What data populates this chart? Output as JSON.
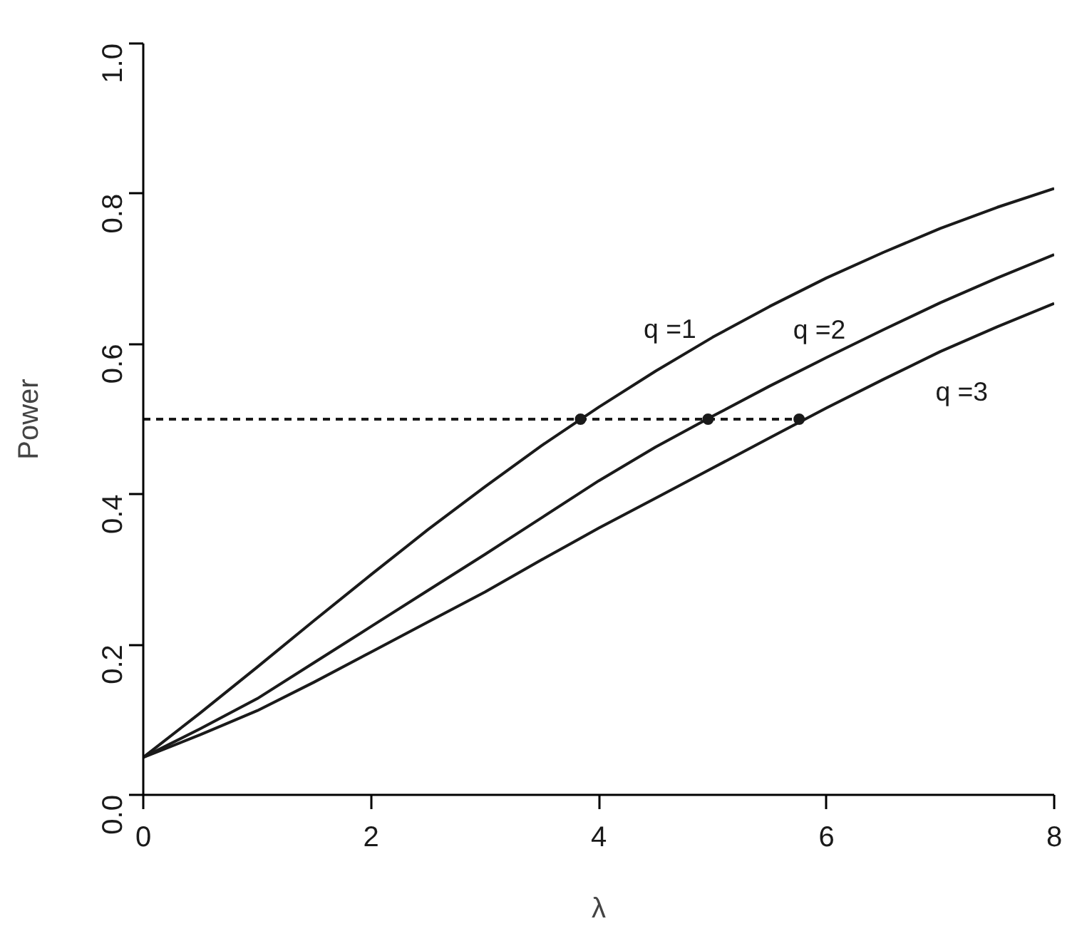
{
  "chart_data": {
    "type": "line",
    "xlabel": "λ",
    "ylabel": "Power",
    "xlim": [
      0,
      8
    ],
    "ylim": [
      0,
      1
    ],
    "xticks": [
      0,
      2,
      4,
      6,
      8
    ],
    "yticks": [
      {
        "value": 0,
        "label": "0.0"
      },
      {
        "value": 0.2,
        "label": "0.2"
      },
      {
        "value": 0.4,
        "label": "0.4"
      },
      {
        "value": 0.6,
        "label": "0.6"
      },
      {
        "value": 0.8,
        "label": "0.8"
      },
      {
        "value": 1,
        "label": "1.0"
      }
    ],
    "grid": false,
    "marker": "none",
    "line_style": "solid",
    "series": [
      {
        "name": "q =1",
        "color": "#1a1a1a",
        "x": [
          0,
          0.5,
          1,
          1.5,
          2,
          2.5,
          3,
          3.5,
          4,
          4.5,
          5,
          5.5,
          6,
          6.5,
          7,
          7.5,
          8
        ],
        "values": [
          0.05,
          0.109,
          0.17,
          0.232,
          0.293,
          0.353,
          0.41,
          0.465,
          0.516,
          0.564,
          0.609,
          0.65,
          0.688,
          0.722,
          0.754,
          0.782,
          0.807
        ]
      },
      {
        "name": "q =2",
        "color": "#1a1a1a",
        "x": [
          0,
          0.5,
          1,
          1.5,
          2,
          2.5,
          3,
          3.5,
          4,
          4.5,
          5,
          5.5,
          6,
          6.5,
          7,
          7.5,
          8
        ],
        "values": [
          0.05,
          0.088,
          0.128,
          0.176,
          0.224,
          0.272,
          0.32,
          0.369,
          0.418,
          0.463,
          0.504,
          0.544,
          0.582,
          0.619,
          0.655,
          0.688,
          0.719
        ]
      },
      {
        "name": "q =3",
        "color": "#1a1a1a",
        "x": [
          0,
          0.5,
          1,
          1.5,
          2,
          2.5,
          3,
          3.5,
          4,
          4.5,
          5,
          5.5,
          6,
          6.5,
          7,
          7.5,
          8
        ],
        "values": [
          0.05,
          0.08,
          0.112,
          0.15,
          0.19,
          0.23,
          0.27,
          0.313,
          0.355,
          0.395,
          0.435,
          0.475,
          0.515,
          0.553,
          0.59,
          0.623,
          0.654
        ]
      },
      {
        "type": "line",
        "line_style": "dashed",
        "color": "#1a1a1a",
        "x": [
          0,
          5.76
        ],
        "values": [
          0.5,
          0.5
        ]
      },
      {
        "type": "scatter",
        "marker": "circle",
        "color": "#1a1a1a",
        "x": [
          3.84,
          4.96,
          5.76
        ],
        "values": [
          0.5,
          0.5,
          0.5
        ]
      }
    ]
  }
}
